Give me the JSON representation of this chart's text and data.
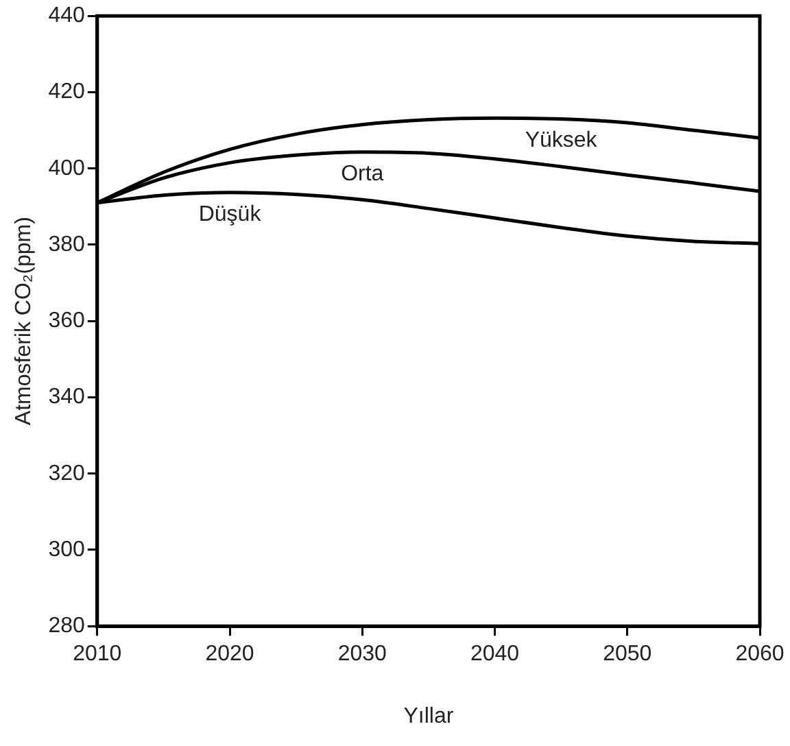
{
  "chart_data": {
    "type": "line",
    "xlabel": "Yıllar",
    "ylabel": "Atmosferik CO₂(ppm)",
    "x": [
      2010,
      2015,
      2020,
      2025,
      2030,
      2035,
      2040,
      2045,
      2050,
      2055,
      2060
    ],
    "series": [
      {
        "name": "Yüksek",
        "color": "#000000",
        "values": [
          391,
          399,
          405,
          409,
          411.5,
          412.8,
          413.2,
          413,
          412,
          410,
          408
        ]
      },
      {
        "name": "Orta",
        "color": "#000000",
        "values": [
          391,
          397.5,
          401.5,
          403.5,
          404.3,
          404,
          402.5,
          400.5,
          398.3,
          396.2,
          394
        ]
      },
      {
        "name": "Düşük",
        "color": "#000000",
        "values": [
          391,
          393,
          393.7,
          393.2,
          391.8,
          389.5,
          387,
          384.5,
          382.3,
          380.9,
          380.3
        ]
      }
    ],
    "xlim": [
      2010,
      2060
    ],
    "xticks": [
      2010,
      2020,
      2030,
      2040,
      2050,
      2060
    ],
    "ylim": [
      280,
      440
    ],
    "yticks": [
      280,
      300,
      320,
      340,
      360,
      380,
      400,
      420,
      440
    ],
    "grid": false,
    "legend": false,
    "marker": "none",
    "line_style": "solid"
  }
}
